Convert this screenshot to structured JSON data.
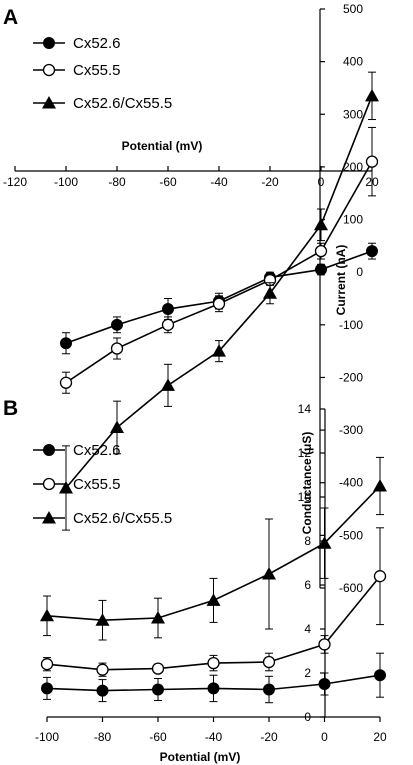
{
  "chart_data": [
    {
      "panel_label": "A",
      "type": "line",
      "xlabel": "Potential (mV)",
      "ylabel": "Current (nA)",
      "xlim": [
        -120,
        20
      ],
      "ylim": [
        -600,
        500
      ],
      "x_ticks": [
        "-120",
        "-100",
        "-80",
        "-60",
        "-40",
        "-20",
        "0",
        "20"
      ],
      "y_ticks": [
        "500",
        "400",
        "300",
        "200",
        "100",
        "0",
        "-100",
        "-200",
        "-300",
        "-400",
        "-500",
        "-600"
      ],
      "x": [
        -100,
        -80,
        -60,
        -40,
        -20,
        0,
        20
      ],
      "legend_position": "top-left",
      "grid": false,
      "series": [
        {
          "name": "Cx52.6",
          "marker": "filled-circle",
          "values": [
            -135,
            -100,
            -70,
            -55,
            -10,
            5,
            40
          ],
          "errors": [
            20,
            15,
            20,
            15,
            10,
            10,
            15
          ]
        },
        {
          "name": "Cx55.5",
          "marker": "open-circle",
          "values": [
            -210,
            -145,
            -100,
            -60,
            -15,
            40,
            210
          ],
          "errors": [
            20,
            20,
            15,
            15,
            10,
            15,
            65
          ]
        },
        {
          "name": "Cx52.6/Cx55.5",
          "marker": "filled-triangle",
          "values": [
            -410,
            -295,
            -215,
            -150,
            -40,
            90,
            335
          ],
          "errors": [
            80,
            50,
            40,
            20,
            20,
            30,
            45
          ]
        }
      ]
    },
    {
      "panel_label": "B",
      "type": "line",
      "xlabel": "Potential (mV)",
      "ylabel": "Conductance (μS)",
      "xlim": [
        -100,
        20
      ],
      "ylim": [
        0,
        14
      ],
      "x_ticks": [
        "-100",
        "-80",
        "-60",
        "-40",
        "-20",
        "0",
        "20"
      ],
      "y_ticks": [
        "14",
        "12",
        "10",
        "8",
        "6",
        "4",
        "2",
        "0"
      ],
      "x": [
        -100,
        -80,
        -60,
        -40,
        -20,
        0,
        20
      ],
      "legend_position": "top-left",
      "grid": false,
      "series": [
        {
          "name": "Cx52.6",
          "marker": "filled-circle",
          "values": [
            1.3,
            1.2,
            1.25,
            1.3,
            1.25,
            1.5,
            1.9
          ],
          "errors": [
            0.5,
            0.5,
            0.5,
            0.6,
            0.6,
            0.5,
            1.0
          ]
        },
        {
          "name": "Cx55.5",
          "marker": "open-circle",
          "values": [
            2.4,
            2.15,
            2.2,
            2.45,
            2.5,
            3.3,
            6.4
          ],
          "errors": [
            0.3,
            0.3,
            0.2,
            0.35,
            0.4,
            0.4,
            2.2
          ]
        },
        {
          "name": "Cx52.6/Cx55.5",
          "marker": "filled-triangle",
          "values": [
            4.6,
            4.4,
            4.5,
            5.3,
            6.5,
            7.9,
            10.5
          ],
          "errors": [
            0.9,
            0.9,
            0.9,
            1.0,
            2.5,
            1.6,
            1.3
          ]
        }
      ]
    }
  ]
}
